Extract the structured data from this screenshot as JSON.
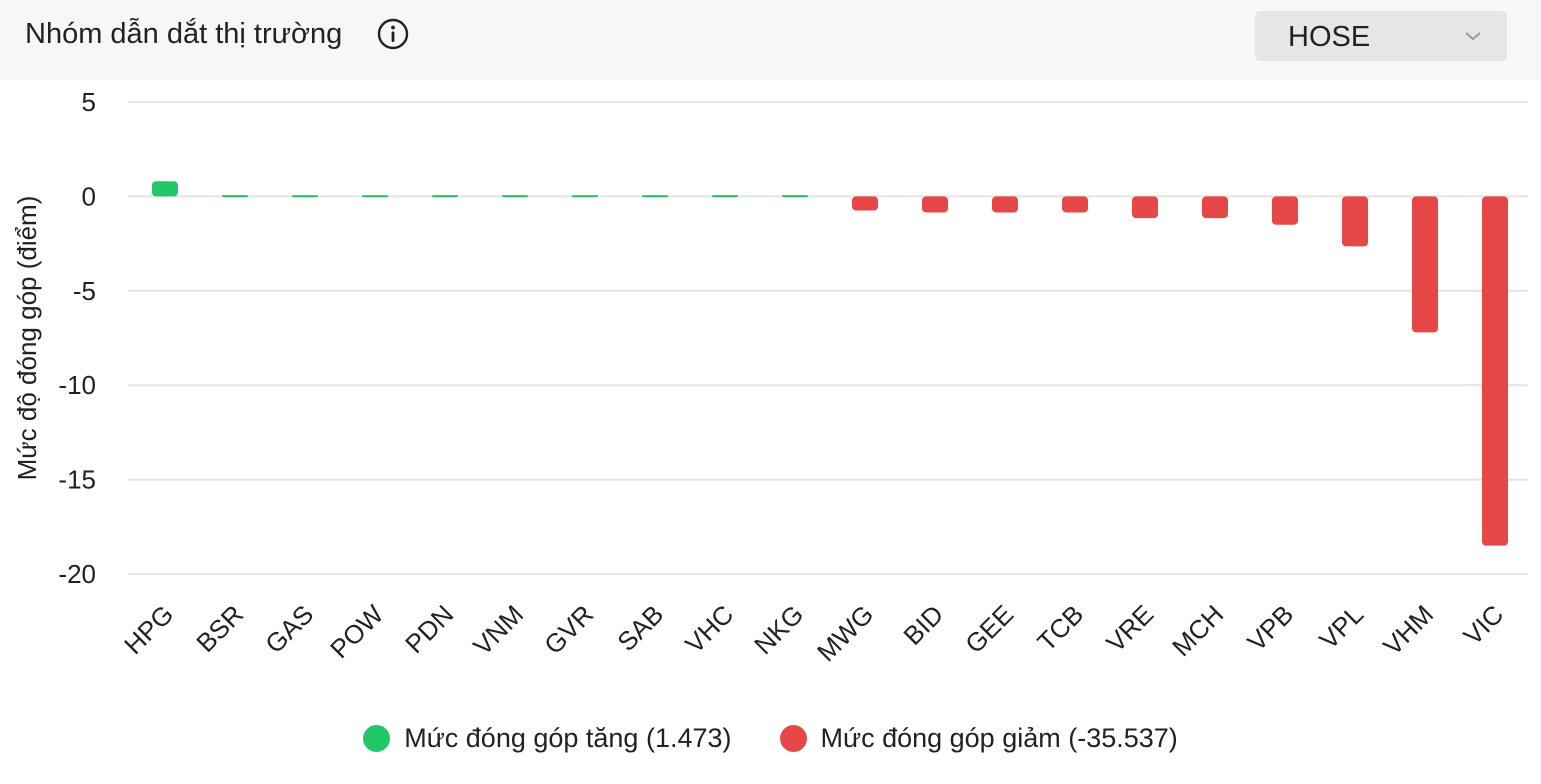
{
  "header": {
    "title": "Nhóm dẫn dắt thị trường",
    "info_icon": "info-circle-icon",
    "exchange_select": {
      "value": "HOSE",
      "icon": "chevron-down-icon"
    }
  },
  "colors": {
    "positive": "#22c768",
    "negative": "#e64848",
    "grid": "#e4e4e4",
    "text": "#222222"
  },
  "chart_data": {
    "type": "bar",
    "title": "",
    "xlabel": "",
    "ylabel": "Mức độ đóng góp (điểm)",
    "ylim": [
      -20,
      5
    ],
    "yticks": [
      5,
      0,
      -5,
      -10,
      -15,
      -20
    ],
    "grid": true,
    "legend_position": "bottom",
    "categories": [
      "HPG",
      "BSR",
      "GAS",
      "POW",
      "PDN",
      "VNM",
      "GVR",
      "SAB",
      "VHC",
      "NKG",
      "MWG",
      "BID",
      "GEE",
      "TCB",
      "VRE",
      "MCH",
      "VPB",
      "VPL",
      "VHM",
      "VIC"
    ],
    "values": [
      0.8,
      0.07,
      0.07,
      0.07,
      0.07,
      0.07,
      0.07,
      0.07,
      0.07,
      0.07,
      -0.75,
      -0.85,
      -0.85,
      -0.85,
      -1.15,
      -1.15,
      -1.5,
      -2.65,
      -7.2,
      -18.5
    ],
    "series": [
      {
        "name": "Mức đóng góp tăng (1.473)",
        "color": "#22c768"
      },
      {
        "name": "Mức đóng góp giảm (-35.537)",
        "color": "#e64848"
      }
    ]
  }
}
